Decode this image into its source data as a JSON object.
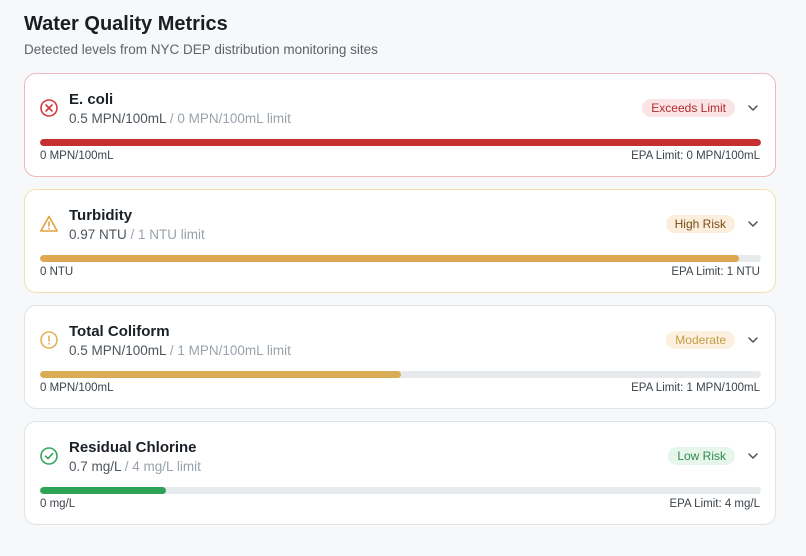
{
  "header": {
    "title": "Water Quality Metrics",
    "subtitle": "Detected levels from NYC DEP distribution monitoring sites"
  },
  "metrics": [
    {
      "name": "E. coli",
      "value_text": "0.5 MPN/100mL",
      "limit_text": "/ 0 MPN/100mL limit",
      "status": "Exceeds Limit",
      "status_icon": "x-circle-icon",
      "min_label": "0 MPN/100mL",
      "max_label": "EPA Limit: 0 MPN/100mL",
      "fill_fraction": 1.0,
      "colors": {
        "accent": "#d63a3a",
        "bar": "#c62f2f",
        "border": "#f0b8bc",
        "badge_bg": "#fbe4e5",
        "badge_text": "#b02a2f"
      }
    },
    {
      "name": "Turbidity",
      "value_text": "0.97 NTU",
      "limit_text": "/ 1 NTU limit",
      "status": "High Risk",
      "status_icon": "warning-triangle-icon",
      "min_label": "0 NTU",
      "max_label": "EPA Limit: 1 NTU",
      "fill_fraction": 0.97,
      "colors": {
        "accent": "#e3a13f",
        "bar": "#dea750",
        "border": "#f4dfb5",
        "badge_bg": "#fbeedd",
        "badge_text": "#7a4d14"
      }
    },
    {
      "name": "Total Coliform",
      "value_text": "0.5 MPN/100mL",
      "limit_text": "/ 1 MPN/100mL limit",
      "status": "Moderate",
      "status_icon": "alert-circle-icon",
      "min_label": "0 MPN/100mL",
      "max_label": "EPA Limit: 1 MPN/100mL",
      "fill_fraction": 0.5,
      "colors": {
        "accent": "#e0b455",
        "bar": "#d9ac55",
        "border": "#dfe4e8",
        "badge_bg": "#fbf1de",
        "badge_text": "#c79a44"
      }
    },
    {
      "name": "Residual Chlorine",
      "value_text": "0.7 mg/L",
      "limit_text": "/ 4 mg/L limit",
      "status": "Low Risk",
      "status_icon": "check-circle-icon",
      "min_label": "0 mg/L",
      "max_label": "EPA Limit: 4 mg/L",
      "fill_fraction": 0.175,
      "colors": {
        "accent": "#36a55a",
        "bar": "#2ea356",
        "border": "#dfe4e8",
        "badge_bg": "#e6f6ea",
        "badge_text": "#2f8a4c"
      }
    }
  ]
}
